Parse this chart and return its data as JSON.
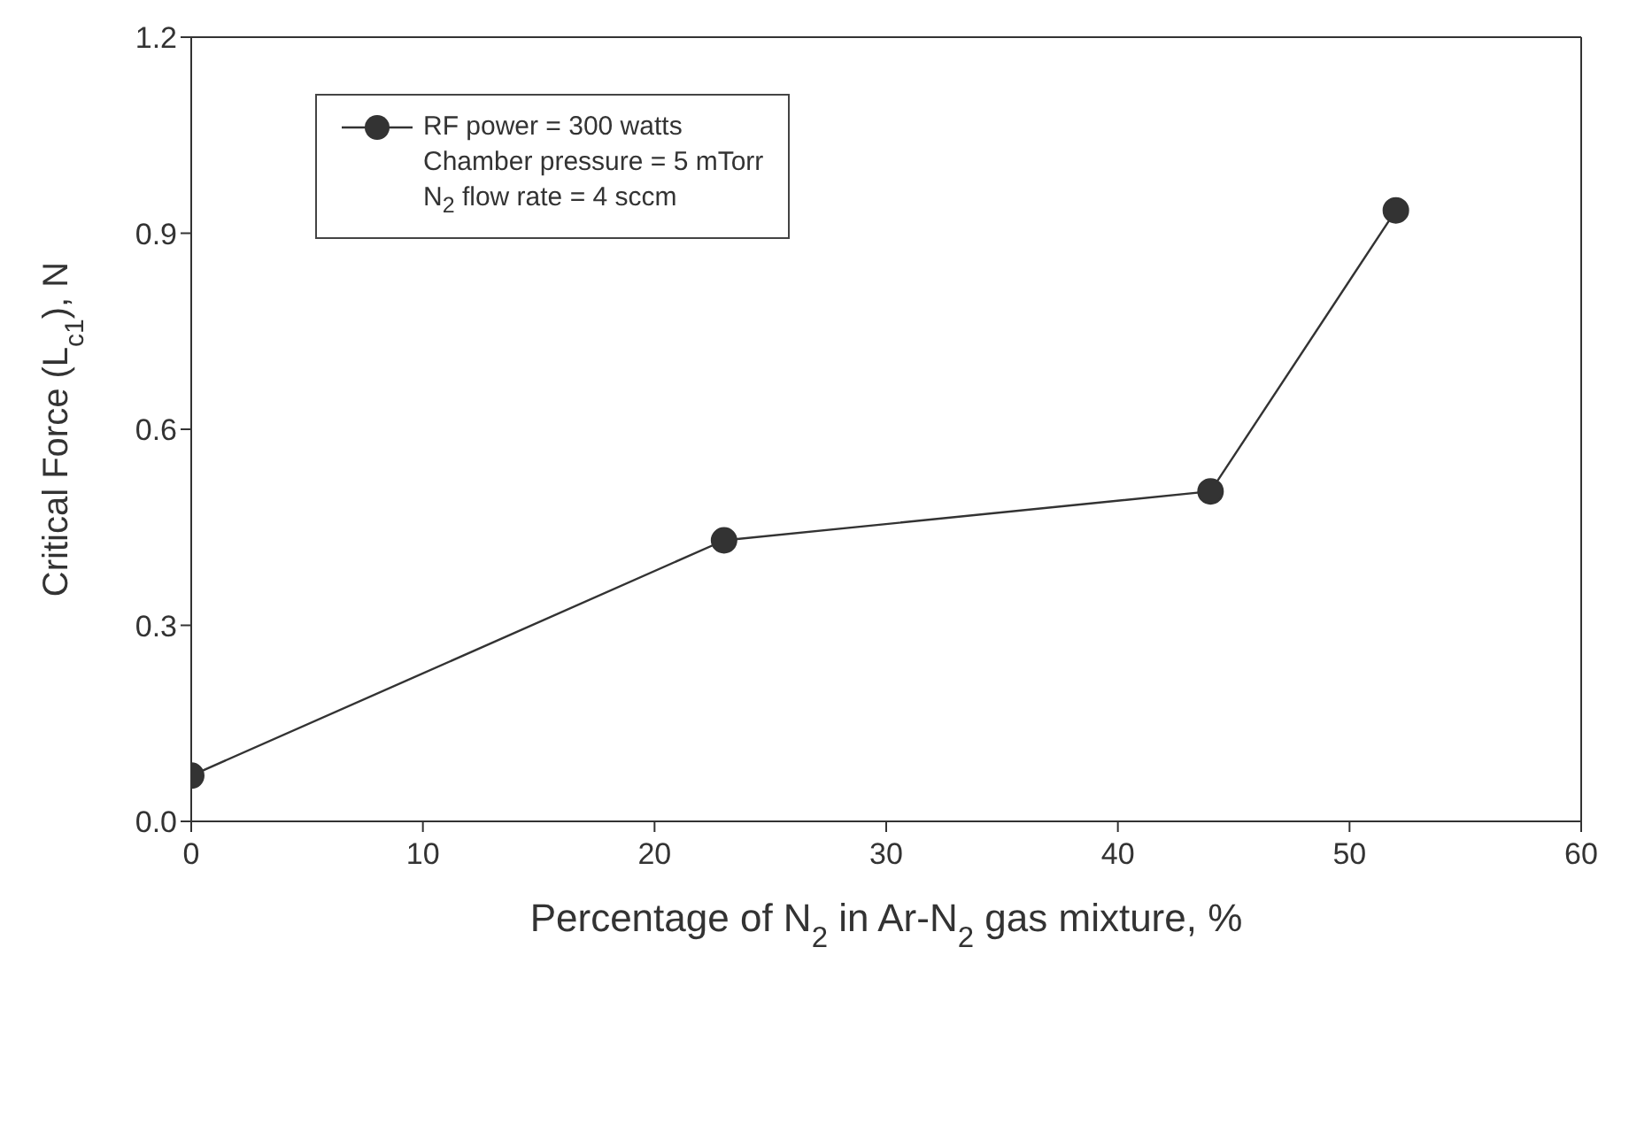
{
  "chart_data": {
    "type": "line",
    "xlabel": "Percentage of N$_{2}$ in Ar-N$_{2}$ gas mixture, %",
    "ylabel": "Critical Force (L$_{c1}$), N",
    "x": [
      0,
      23,
      44,
      52
    ],
    "series": [
      {
        "name": "RF power = 300 watts",
        "color": "#333333",
        "values": [
          0.07,
          0.43,
          0.505,
          0.935
        ]
      }
    ],
    "annotations": [
      "Chamber pressure = 5 mTorr",
      "N$_{2}$ flow rate = 4 sccm"
    ],
    "xlim": [
      0,
      60
    ],
    "xticks": [
      0,
      10,
      20,
      30,
      40,
      50,
      60
    ],
    "ylim": [
      0,
      1.2
    ],
    "yticks": [
      {
        "value": 0,
        "label": "0.0"
      },
      {
        "value": 0.3,
        "label": "0.3"
      },
      {
        "value": 0.6,
        "label": "0.6"
      },
      {
        "value": 0.9,
        "label": "0.9"
      },
      {
        "value": 1.2,
        "label": "1.2"
      }
    ],
    "grid": false,
    "legend": "top left",
    "marker": "circle",
    "line_style": "solid"
  }
}
